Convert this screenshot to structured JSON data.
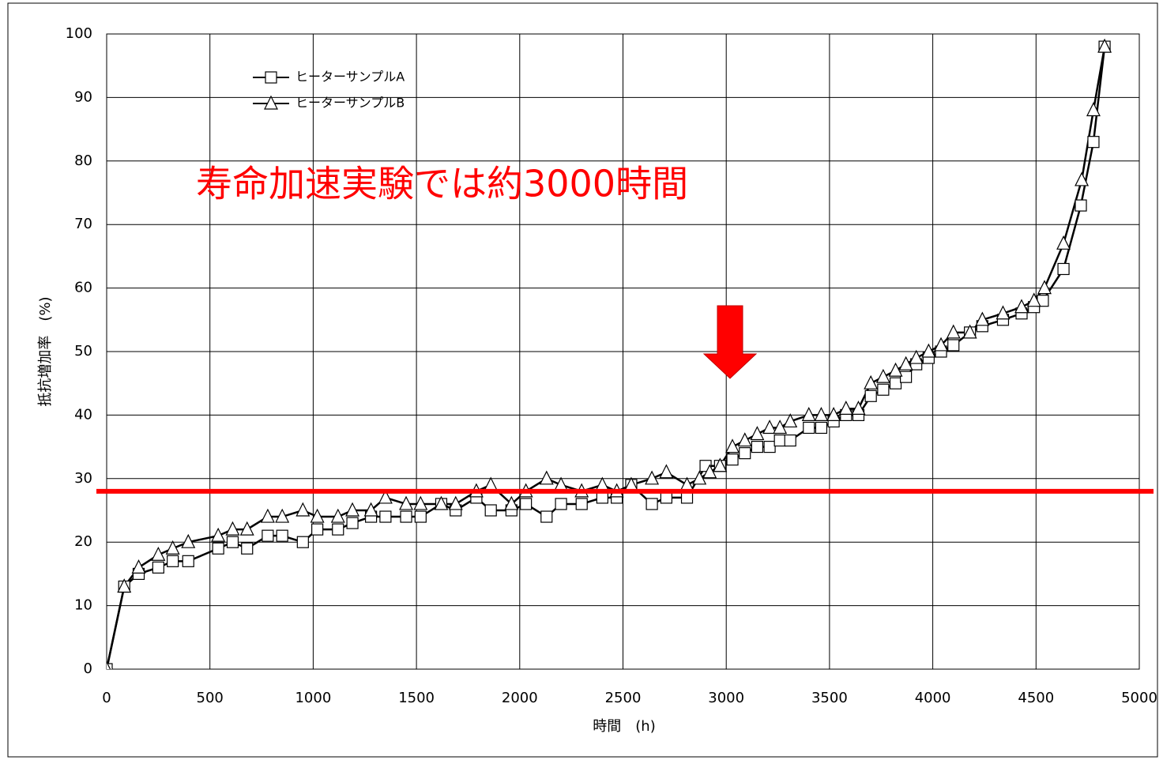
{
  "chart_data": {
    "type": "line",
    "annotation": "寿命加速実験では約3000時間",
    "x_label": "時間　(h)",
    "y_label": "抵抗増加率　(%)",
    "xlim": [
      0,
      5000
    ],
    "xticks": [
      0,
      500,
      1000,
      1500,
      2000,
      2500,
      3000,
      3500,
      4000,
      4500,
      5000
    ],
    "ylim": [
      0,
      100
    ],
    "yticks": [
      0,
      10,
      20,
      30,
      40,
      50,
      60,
      70,
      80,
      90,
      100
    ],
    "grid": true,
    "legend": "upper-left",
    "reference_line": {
      "value": 28,
      "color": "#ff0000"
    },
    "series": [
      {
        "name": "ヒーターサンプルA",
        "color": "#000000",
        "marker": "square",
        "x": [
          0,
          85,
          155,
          250,
          320,
          395,
          540,
          610,
          680,
          780,
          850,
          950,
          1020,
          1120,
          1190,
          1280,
          1350,
          1450,
          1520,
          1620,
          1690,
          1790,
          1860,
          1960,
          2030,
          2130,
          2200,
          2300,
          2400,
          2470,
          2540,
          2640,
          2710,
          2810,
          2900,
          2970,
          3030,
          3090,
          3150,
          3210,
          3260,
          3310,
          3400,
          3460,
          3520,
          3580,
          3640,
          3700,
          3760,
          3820,
          3870,
          3920,
          3980,
          4040,
          4100,
          4180,
          4240,
          4340,
          4430,
          4490,
          4533,
          4633,
          4717,
          4778,
          4832
        ],
        "values": [
          0,
          13,
          15,
          16,
          17,
          17,
          19,
          20,
          19,
          21,
          21,
          20,
          22,
          22,
          23,
          24,
          24,
          24,
          24,
          26,
          25,
          27,
          25,
          25,
          26,
          24,
          26,
          26,
          27,
          27,
          29,
          26,
          27,
          27,
          32,
          32,
          33,
          34,
          35,
          35,
          36,
          36,
          38,
          38,
          39,
          40,
          40,
          43,
          44,
          45,
          46,
          48,
          49,
          50,
          51,
          53,
          54,
          55,
          56,
          57,
          58,
          63,
          73,
          83,
          98
        ]
      },
      {
        "name": "ヒーターサンプルB",
        "color": "#000000",
        "marker": "triangle",
        "x": [
          0,
          85,
          155,
          250,
          320,
          395,
          540,
          610,
          680,
          780,
          850,
          950,
          1020,
          1120,
          1190,
          1280,
          1350,
          1450,
          1520,
          1620,
          1690,
          1790,
          1860,
          1960,
          2030,
          2130,
          2200,
          2300,
          2400,
          2470,
          2540,
          2640,
          2710,
          2810,
          2870,
          2920,
          2970,
          3030,
          3090,
          3150,
          3210,
          3260,
          3310,
          3400,
          3460,
          3520,
          3580,
          3640,
          3700,
          3760,
          3820,
          3870,
          3920,
          3980,
          4040,
          4100,
          4180,
          4240,
          4340,
          4430,
          4490,
          4541,
          4633,
          4721,
          4778,
          4832
        ],
        "values": [
          0,
          13,
          16,
          18,
          19,
          20,
          21,
          22,
          22,
          24,
          24,
          25,
          24,
          24,
          25,
          25,
          27,
          26,
          26,
          26,
          26,
          28,
          29,
          26,
          28,
          30,
          29,
          28,
          29,
          28,
          29,
          30,
          31,
          29,
          30,
          31,
          32,
          35,
          36,
          37,
          38,
          38,
          39,
          40,
          40,
          40,
          41,
          41,
          45,
          46,
          47,
          48,
          49,
          50,
          51,
          53,
          53,
          55,
          56,
          57,
          58,
          60,
          67,
          77,
          88,
          98
        ]
      }
    ]
  }
}
